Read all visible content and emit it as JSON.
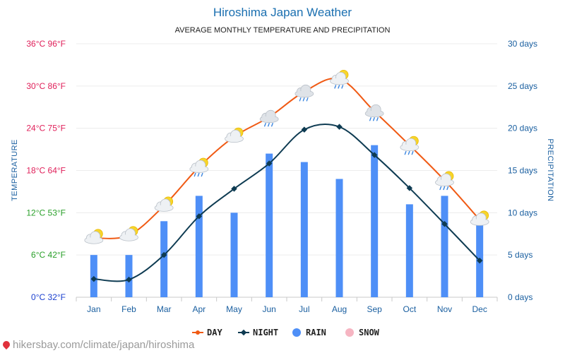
{
  "chart_data": {
    "type": "line",
    "title": "Hiroshima Japan Weather",
    "subtitle": "AVERAGE MONTHLY TEMPERATURE AND PRECIPITATION",
    "ylabel": "TEMPERATURE",
    "y2label": "PRECIPITATION",
    "categories": [
      "Jan",
      "Feb",
      "Mar",
      "Apr",
      "May",
      "Jun",
      "Jul",
      "Aug",
      "Sep",
      "Oct",
      "Nov",
      "Dec"
    ],
    "ylim": [
      0,
      36
    ],
    "y2lim": [
      0,
      30
    ],
    "left_ticks": [
      {
        "value": 0,
        "label": "0°C 32°F",
        "color": "#1a3fcf"
      },
      {
        "value": 6,
        "label": "6°C 42°F",
        "color": "#2aa02a"
      },
      {
        "value": 12,
        "label": "12°C 53°F",
        "color": "#2aa02a"
      },
      {
        "value": 18,
        "label": "18°C 64°F",
        "color": "#e0205a"
      },
      {
        "value": 24,
        "label": "24°C 75°F",
        "color": "#e0205a"
      },
      {
        "value": 30,
        "label": "30°C 86°F",
        "color": "#e0205a"
      },
      {
        "value": 36,
        "label": "36°C 96°F",
        "color": "#e0205a"
      }
    ],
    "right_ticks": [
      {
        "value": 0,
        "label": "0 days"
      },
      {
        "value": 5,
        "label": "5 days"
      },
      {
        "value": 10,
        "label": "10 days"
      },
      {
        "value": 15,
        "label": "15 days"
      },
      {
        "value": 20,
        "label": "20 days"
      },
      {
        "value": 25,
        "label": "25 days"
      },
      {
        "value": 30,
        "label": "30 days"
      }
    ],
    "series": [
      {
        "name": "DAY",
        "kind": "line",
        "axis": "left",
        "color": "#f05a14",
        "values": [
          8.4,
          8.8,
          13.0,
          18.5,
          22.8,
          25.6,
          29.2,
          31.0,
          26.4,
          21.6,
          16.6,
          11.0
        ],
        "icons": [
          "sun-cloud",
          "sun-cloud",
          "sun-cloud",
          "sun-rain-cloud",
          "sun-cloud",
          "rain-cloud",
          "rain-cloud",
          "sun-rain-cloud",
          "rain-cloud",
          "sun-rain-cloud",
          "sun-rain-cloud",
          "sun-cloud"
        ]
      },
      {
        "name": "NIGHT",
        "kind": "line",
        "axis": "left",
        "color": "#0e3b52",
        "values": [
          2.6,
          2.5,
          6.0,
          11.5,
          15.4,
          19.0,
          23.8,
          24.2,
          20.2,
          15.5,
          10.4,
          5.2
        ]
      },
      {
        "name": "RAIN",
        "kind": "bar",
        "axis": "right",
        "color": "#4e8ff7",
        "values": [
          5,
          5,
          9,
          12,
          10,
          17,
          16,
          14,
          18,
          11,
          12,
          9
        ]
      },
      {
        "name": "SNOW",
        "kind": "bar",
        "axis": "right",
        "color": "#f6b5c2",
        "values": [
          0,
          0,
          0,
          0,
          0,
          0,
          0,
          0,
          0,
          0,
          0,
          0
        ]
      }
    ],
    "legend": "bottom"
  },
  "source_text": "hikersbay.com/climate/japan/hiroshima"
}
